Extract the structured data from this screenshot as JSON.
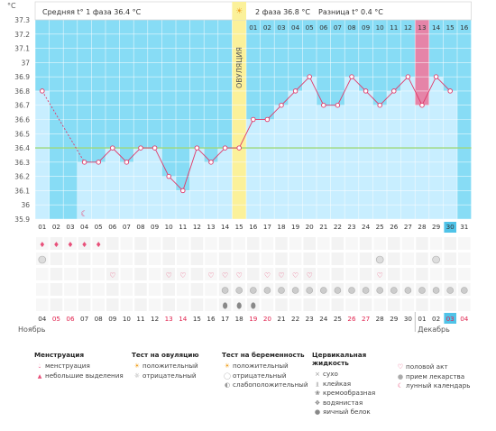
{
  "header": {
    "unit": "°C",
    "phase1": "Средняя t° 1 фаза 36.4 °C",
    "phase2": "2 фаза 36.8 °C",
    "diff": "Разница t° 0.4 °C",
    "ovulation": "ОВУЛЯЦИЯ"
  },
  "chart_data": {
    "type": "line",
    "ylabel": "°C",
    "ylim": [
      35.9,
      37.3
    ],
    "yticks": [
      "37.3",
      "37.2",
      "37.1",
      "37",
      "36.9",
      "36.8",
      "36.7",
      "36.6",
      "36.5",
      "36.4",
      "36.3",
      "36.2",
      "36.1",
      "36",
      "35.9"
    ],
    "x": [
      "01",
      "02",
      "03",
      "04",
      "05",
      "06",
      "07",
      "08",
      "09",
      "10",
      "11",
      "12",
      "13",
      "14",
      "15",
      "16",
      "17",
      "18",
      "19",
      "20",
      "21",
      "22",
      "23",
      "24",
      "25",
      "26",
      "27",
      "28",
      "29",
      "30",
      "31"
    ],
    "series": [
      {
        "values": [
          36.8,
          null,
          null,
          36.3,
          36.3,
          36.4,
          36.3,
          36.4,
          36.4,
          36.2,
          36.1,
          36.4,
          36.3,
          36.4,
          36.4,
          36.6,
          36.6,
          36.7,
          36.8,
          36.9,
          36.7,
          36.7,
          36.9,
          36.8,
          36.7,
          36.8,
          36.9,
          36.7,
          36.9,
          36.8,
          null
        ]
      }
    ],
    "coverline": 36.4,
    "ovulation_day": "15",
    "phase2_days": [
      "01",
      "02",
      "03",
      "04",
      "05",
      "06",
      "07",
      "08",
      "09",
      "10",
      "11",
      "12",
      "13",
      "14",
      "15",
      "16"
    ],
    "highlighted_day": "13",
    "today": "30",
    "dates": [
      "04",
      "05",
      "06",
      "07",
      "08",
      "09",
      "10",
      "11",
      "12",
      "13",
      "14",
      "15",
      "16",
      "17",
      "18",
      "19",
      "20",
      "21",
      "22",
      "23",
      "24",
      "25",
      "26",
      "27",
      "28",
      "29",
      "30",
      "01",
      "02",
      "03",
      "04"
    ],
    "red_dates": [
      1,
      2,
      9,
      10,
      15,
      16,
      22,
      23,
      29,
      30
    ],
    "month_left": "Ноябрь",
    "month_right": "Декабрь",
    "menstruation_days": [
      1,
      2,
      3,
      4,
      5
    ],
    "moon_day": 4,
    "ovulation_test_negative_days": [
      1,
      25,
      29
    ],
    "intercourse_days": [
      6,
      10,
      11,
      13,
      14,
      15,
      17,
      18,
      25
    ],
    "mucus_days": [
      14,
      15,
      16,
      17,
      18,
      19,
      20,
      21,
      22,
      23,
      24,
      25,
      26,
      27,
      28,
      29,
      30,
      31
    ],
    "egg_white_days": [
      14,
      15,
      16
    ]
  },
  "legend": {
    "menstruation": {
      "title": "Менструация",
      "items": [
        "менструация",
        "небольшие выделения"
      ]
    },
    "ovulation_test": {
      "title": "Тест на овуляцию",
      "items": [
        "положительный",
        "отрицательный"
      ]
    },
    "pregnancy_test": {
      "title": "Тест на беременность",
      "items": [
        "положительный",
        "отрицательный",
        "слабоположительный"
      ]
    },
    "cervical": {
      "title": "Цервикальная жидкость",
      "items": [
        "сухо",
        "клейкая",
        "кремообразная",
        "водянистая",
        "яичный белок"
      ]
    },
    "other": {
      "items": [
        "половой акт",
        "прием лекарства",
        "лунный календарь"
      ]
    }
  },
  "colors": {
    "accent": "#e8507a",
    "grid_blue": "#87dcf5",
    "bar": "#c8eeff",
    "ovulation": "#fbf19a",
    "coverline": "#9ed87a"
  }
}
